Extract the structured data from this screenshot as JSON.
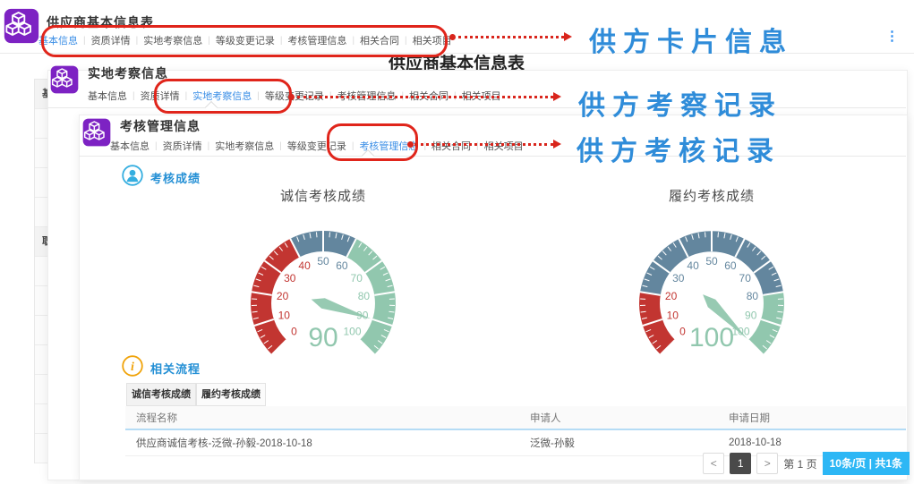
{
  "window1": {
    "title": "供应商基本信息表",
    "active_tab": "基本信息",
    "more_icon": "⋮"
  },
  "window2": {
    "title": "实地考察信息",
    "active_tab": "实地考察信息"
  },
  "window3": {
    "title": "考核管理信息",
    "active_tab": "考核管理信息"
  },
  "card_tabs": [
    "基本信息",
    "资质详情",
    "实地考察信息",
    "等级变更记录",
    "考核管理信息",
    "相关合同",
    "相关项目"
  ],
  "page_heading": "供应商基本信息表",
  "side_strip": {
    "row_count": 13,
    "labels": [
      {
        "row": 0,
        "text": "基"
      },
      {
        "row": 5,
        "text": "职"
      }
    ]
  },
  "annotations": [
    {
      "label": "供方卡片信息"
    },
    {
      "label": "供方考察记录"
    },
    {
      "label": "供方考核记录"
    }
  ],
  "sections": {
    "scores": {
      "title": "考核成绩"
    },
    "flows": {
      "title": "相关流程",
      "tabs": [
        "诚信考核成绩",
        "履约考核成绩"
      ],
      "active_tab": "诚信考核成绩"
    }
  },
  "chart_data": [
    {
      "type": "gauge",
      "title": "诚信考核成绩",
      "value": 90,
      "min": 0,
      "max": 100,
      "tick_step": 10,
      "zones": [
        {
          "to": 40,
          "color": "#c23531"
        },
        {
          "to": 60,
          "color": "#63869e"
        },
        {
          "to": 100,
          "color": "#91c7ae"
        }
      ]
    },
    {
      "type": "gauge",
      "title": "履约考核成绩",
      "value": 100,
      "min": 0,
      "max": 100,
      "tick_step": 10,
      "zones": [
        {
          "to": 20,
          "color": "#c23531"
        },
        {
          "to": 80,
          "color": "#63869e"
        },
        {
          "to": 100,
          "color": "#91c7ae"
        }
      ]
    }
  ],
  "flow_table": {
    "columns": [
      "流程名称",
      "申请人",
      "申请日期"
    ],
    "rows": [
      [
        "供应商诚信考核-泛微-孙毅-2018-10-18",
        "泛微-孙毅",
        "2018-10-18"
      ]
    ]
  },
  "pagination": {
    "prev": "<",
    "current": "1",
    "next": ">",
    "page_label": "第 1 页",
    "badge": "10条/页 | 共1条"
  },
  "colors": {
    "accent_blue": "#3a8ee6",
    "annotation_blue": "#2f8cd9",
    "annotation_red": "#e0251b",
    "badge_blue": "#2db7f5",
    "logo_purple": "#7d22c3",
    "gauge_red": "#c23531",
    "gauge_blue": "#63869e",
    "gauge_green": "#91c7ae"
  }
}
